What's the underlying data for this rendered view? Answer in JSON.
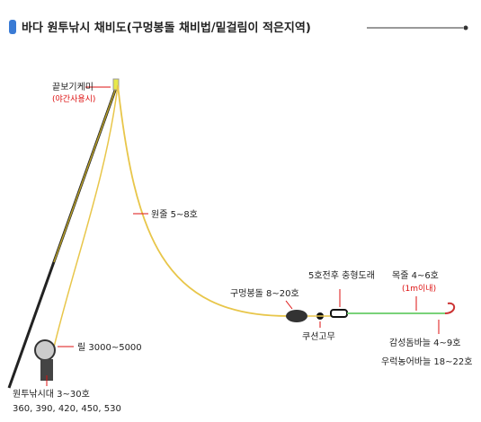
{
  "title": "바다 원투낚시 채비도(구멍봉돌 채비법/밑걸림이 적은지역)",
  "labels": {
    "tip_light": "끝보기케미",
    "tip_light_note": "(야간사용시)",
    "main_line": "원줄 5~8호",
    "reel": "릴 3000~5000",
    "rod": "원투낚시대 3~30호",
    "rod_lengths": "360, 390, 420, 450, 530",
    "sinker": "구멍봉돌 8~20호",
    "cushion": "쿠션고무",
    "swivel": "5호전후 충형도래",
    "leader": "목줄 4~6호",
    "leader_note": "(1m이내)",
    "hook1": "감성돔바늘 4~9호",
    "hook2": "우럭농어바늘 18~22호"
  }
}
